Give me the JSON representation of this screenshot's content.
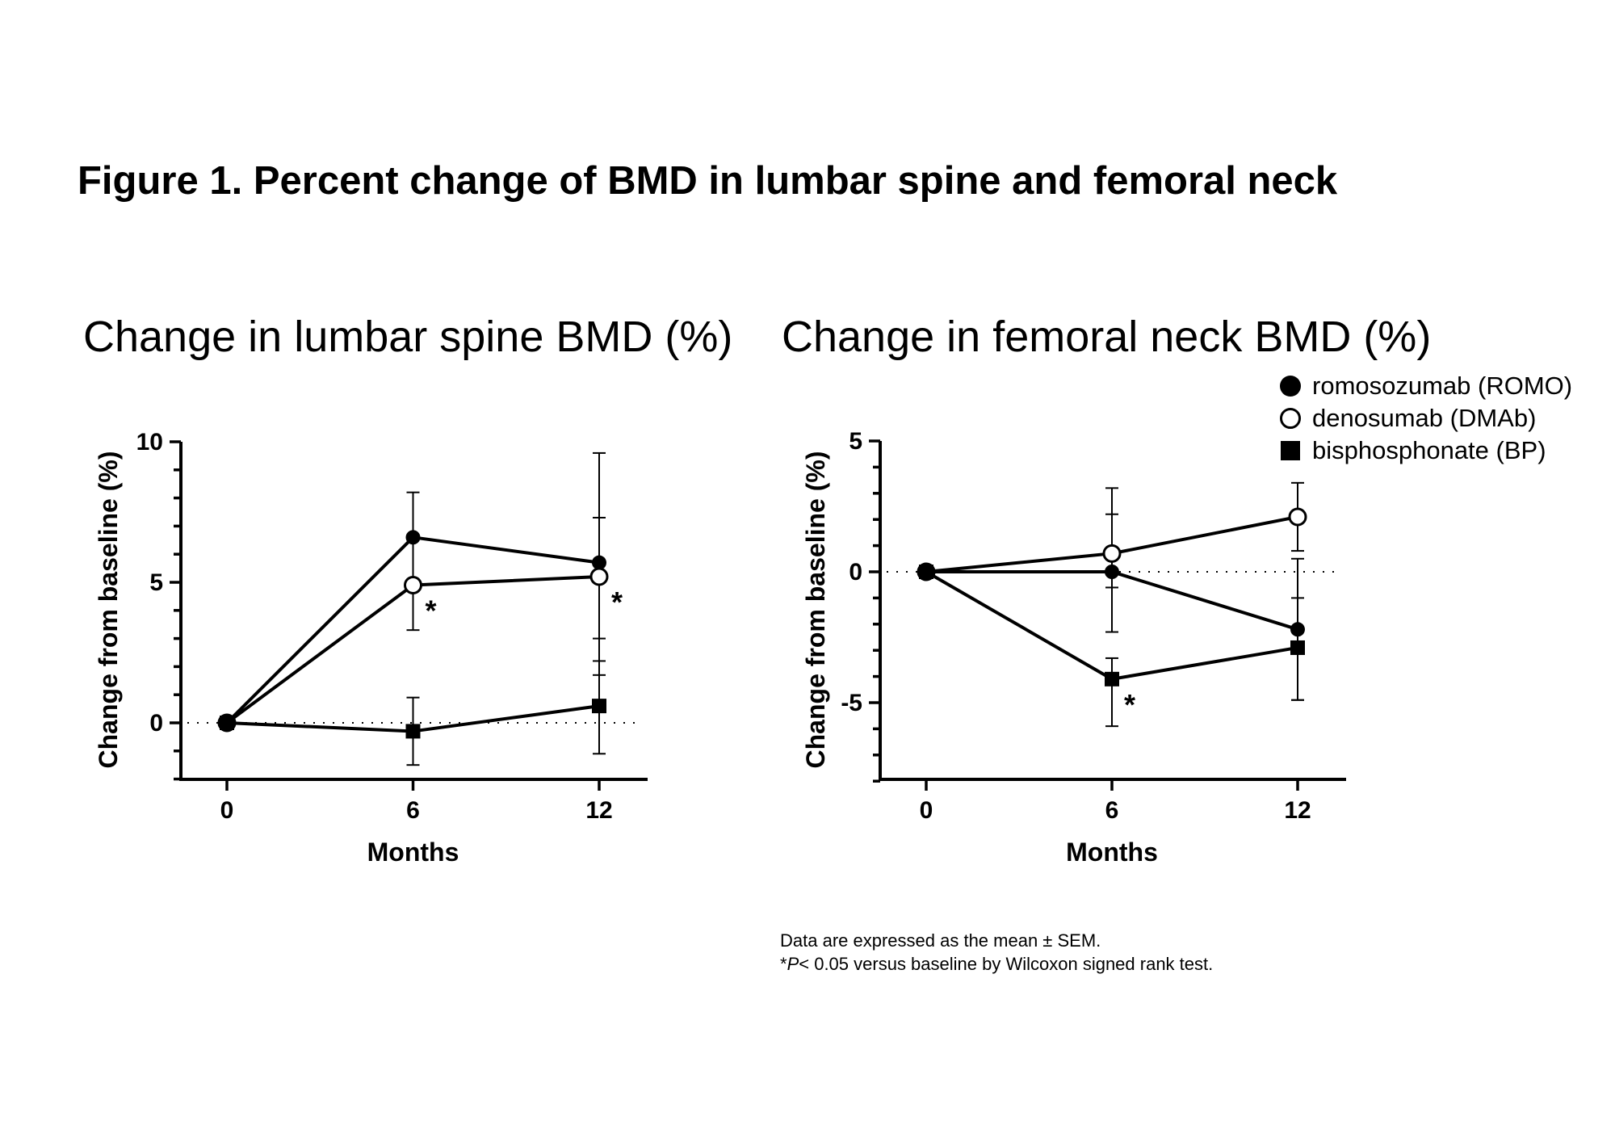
{
  "figure_title": "Figure 1. Percent change of BMD in lumbar spine and femoral neck",
  "legend": {
    "items": [
      {
        "label": "romosozumab (ROMO)",
        "marker": "filled-circle"
      },
      {
        "label": "denosumab (DMAb)",
        "marker": "open-circle"
      },
      {
        "label": "bisphosphonate (BP)",
        "marker": "filled-square"
      }
    ]
  },
  "footnote": {
    "line1": "Data are expressed as the mean ± SEM.",
    "line2_prefix": "*",
    "line2_p": "P",
    "line2_rest": "< 0.05 versus baseline by Wilcoxon signed rank test."
  },
  "chart_data": [
    {
      "type": "line",
      "title": "Change in lumbar spine BMD (%)",
      "xlabel": "Months",
      "ylabel": "Change from baseline (%)",
      "x": [
        0,
        6,
        12
      ],
      "xticks": [
        "0",
        "6",
        "12"
      ],
      "ylim": [
        -2,
        10
      ],
      "yticks": [
        0,
        5,
        10
      ],
      "ytick_labels": [
        "0",
        "5",
        "10"
      ],
      "reference_line": 0,
      "series": [
        {
          "name": "romosozumab (ROMO)",
          "marker": "filled-circle",
          "values": [
            0,
            6.6,
            5.7
          ],
          "err_upper": [
            0,
            8.2,
            9.6
          ],
          "err_lower": [
            0,
            4.9,
            1.7
          ]
        },
        {
          "name": "denosumab (DMAb)",
          "marker": "open-circle",
          "values": [
            0,
            4.9,
            5.2
          ],
          "err_upper": [
            0,
            6.5,
            7.3
          ],
          "err_lower": [
            0,
            3.3,
            3.0
          ]
        },
        {
          "name": "bisphosphonate (BP)",
          "marker": "filled-square",
          "values": [
            0,
            -0.3,
            0.6
          ],
          "err_upper": [
            0,
            0.9,
            2.2
          ],
          "err_lower": [
            0,
            -1.5,
            -1.1
          ]
        }
      ],
      "significance": [
        {
          "series": "denosumab (DMAb)",
          "x": 6,
          "label": "*"
        },
        {
          "series": "denosumab (DMAb)",
          "x": 12,
          "label": "*"
        }
      ]
    },
    {
      "type": "line",
      "title": "Change in femoral neck BMD (%)",
      "xlabel": "Months",
      "ylabel": "Change from baseline (%)",
      "x": [
        0,
        6,
        12
      ],
      "xticks": [
        "0",
        "6",
        "12"
      ],
      "ylim": [
        -8,
        5
      ],
      "yticks": [
        -5,
        0,
        5
      ],
      "ytick_labels": [
        "-5",
        "0",
        "5"
      ],
      "reference_line": 0,
      "series": [
        {
          "name": "romosozumab (ROMO)",
          "marker": "filled-circle",
          "values": [
            0,
            0,
            -2.2
          ],
          "err_upper": [
            0,
            2.2,
            0.5
          ],
          "err_lower": [
            0,
            -2.3,
            -4.9
          ]
        },
        {
          "name": "denosumab (DMAb)",
          "marker": "open-circle",
          "values": [
            0,
            0.7,
            2.1
          ],
          "err_upper": [
            0,
            3.2,
            3.4
          ],
          "err_lower": [
            0,
            -0.6,
            0.8
          ]
        },
        {
          "name": "bisphosphonate (BP)",
          "marker": "filled-square",
          "values": [
            0,
            -4.1,
            -2.9
          ],
          "err_upper": [
            0,
            -3.3,
            -1.0
          ],
          "err_lower": [
            0,
            -5.9,
            -4.9
          ]
        }
      ],
      "significance": [
        {
          "series": "bisphosphonate (BP)",
          "x": 6,
          "label": "*"
        }
      ]
    }
  ]
}
